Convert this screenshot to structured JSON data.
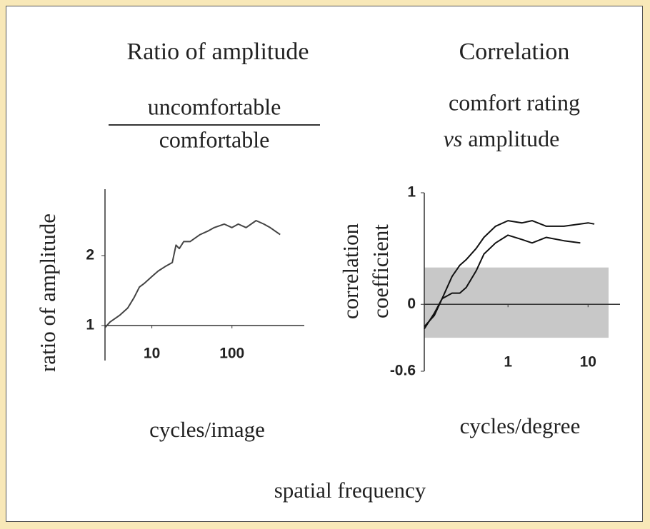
{
  "chart_data": [
    {
      "type": "line",
      "title": "Ratio of amplitude",
      "subtitle": {
        "numerator": "uncomfortable",
        "denominator": "comfortable"
      },
      "ylabel": "ratio of amplitude",
      "xlabel": "cycles/image",
      "xscale": "log",
      "xlim": [
        2.6,
        800
      ],
      "xticks": [
        10,
        100
      ],
      "ylim": [
        0.5,
        3
      ],
      "yticks": [
        1,
        2
      ],
      "x_axis_at": 1,
      "series": [
        {
          "color": "#444444",
          "x": [
            2.6,
            3,
            4,
            5,
            6,
            7,
            8,
            10,
            12,
            15,
            18,
            20,
            22,
            25,
            30,
            40,
            50,
            60,
            80,
            100,
            120,
            150,
            200,
            250,
            300,
            400
          ],
          "values": [
            0.97,
            1.05,
            1.15,
            1.25,
            1.4,
            1.55,
            1.6,
            1.7,
            1.78,
            1.85,
            1.9,
            2.15,
            2.1,
            2.2,
            2.2,
            2.3,
            2.35,
            2.4,
            2.45,
            2.4,
            2.45,
            2.4,
            2.5,
            2.45,
            2.4,
            2.3
          ]
        }
      ]
    },
    {
      "type": "line",
      "title": "Correlation",
      "subtitle": [
        "comfort rating",
        "vs amplitude"
      ],
      "ylabel": [
        "correlation",
        "coefficient"
      ],
      "xlabel": "cycles/degree",
      "xscale": "log",
      "xlim": [
        0.09,
        20
      ],
      "xticks": [
        1,
        10
      ],
      "ylim": [
        -0.6,
        1
      ],
      "yticks": [
        {
          "value": -0.6,
          "label": "-0.6"
        },
        0,
        1
      ],
      "x_axis_at": 0,
      "band": [
        -0.3,
        0.33
      ],
      "band_color": "#c8c8c8",
      "series": [
        {
          "color": "#111111",
          "x": [
            0.09,
            0.12,
            0.15,
            0.2,
            0.25,
            0.3,
            0.4,
            0.5,
            0.7,
            1,
            1.5,
            2,
            3,
            5,
            8,
            10,
            12
          ],
          "values": [
            -0.2,
            -0.1,
            0.05,
            0.25,
            0.35,
            0.4,
            0.5,
            0.6,
            0.7,
            0.75,
            0.73,
            0.75,
            0.7,
            0.7,
            0.72,
            0.73,
            0.72
          ]
        },
        {
          "color": "#111111",
          "x": [
            0.09,
            0.12,
            0.15,
            0.2,
            0.25,
            0.3,
            0.4,
            0.5,
            0.7,
            1,
            1.5,
            2,
            3,
            5,
            8
          ],
          "values": [
            -0.22,
            -0.08,
            0.05,
            0.1,
            0.1,
            0.15,
            0.3,
            0.45,
            0.55,
            0.62,
            0.58,
            0.55,
            0.6,
            0.57,
            0.55
          ]
        }
      ]
    }
  ],
  "footer": "spatial frequency"
}
